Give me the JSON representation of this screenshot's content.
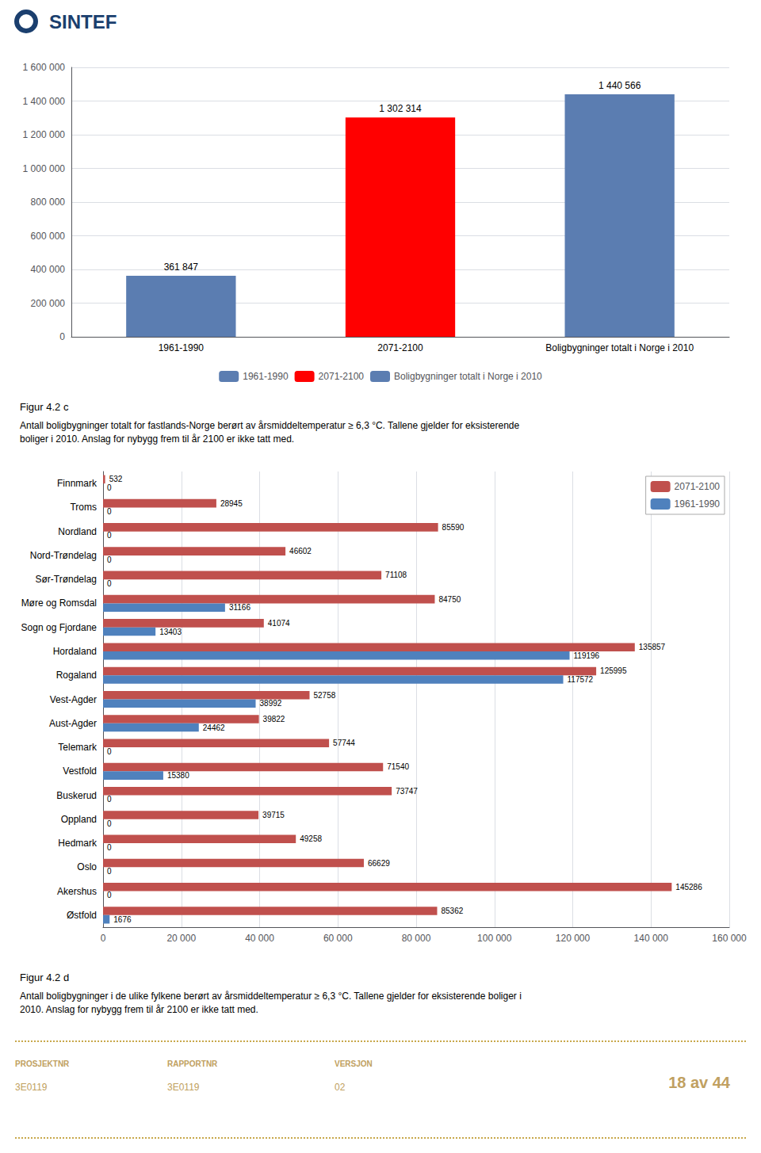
{
  "chart_data": [
    {
      "type": "bar",
      "title": "Figur 4.2 c",
      "subtitle": "Antall boligbygninger totalt for fastlands-Norge berørt av årsmiddeltemperatur ≥ 6,3 °C. Tallene gjelder for eksisterende\nboliger i 2010. Anslag for nybygg frem til år 2100 er ikke tatt med.",
      "categories": [
        "1961-1990",
        "2071-2100",
        "Boligbygninger totalt i Norge i 2010"
      ],
      "values": [
        361847,
        1302314,
        1440566
      ],
      "value_labels": [
        "361 847",
        "1 302 314",
        "1 440 566"
      ],
      "colors": [
        "#5B7DB1",
        "#FF0000",
        "#5B7DB1"
      ],
      "data_labels": true,
      "ylim": [
        0,
        1600000
      ],
      "yticks": [
        0,
        {
          "value": 200000,
          "label": "200 000"
        },
        {
          "value": 400000,
          "label": "400 000"
        },
        {
          "value": 600000,
          "label": "600 000"
        },
        {
          "value": 800000,
          "label": "800 000"
        },
        {
          "value": 1000000,
          "label": "1 000 000"
        },
        {
          "value": 1200000,
          "label": "1 200 000"
        },
        {
          "value": 1400000,
          "label": "1 400 000"
        },
        {
          "value": 1600000,
          "label": "1 600 000"
        }
      ],
      "grid": true,
      "legend": "bottom",
      "annotations": [
        {
          "text": "SINTEF",
          "color": "#1B3F6E"
        }
      ]
    },
    {
      "type": "bar",
      "orientation": "horizontal",
      "title": "Figur 4.2 d",
      "subtitle": "Antall boligbygninger i de ulike fylkene berørt av årsmiddeltemperatur ≥ 6,3 °C. Tallene gjelder for eksisterende boliger i\n2010. Anslag for nybygg frem til år 2100 er ikke tatt med.",
      "categories": [
        "Finnmark",
        "Troms",
        "Nordland",
        "Nord-Trøndelag",
        "Sør-Trøndelag",
        "Møre og Romsdal",
        "Sogn og Fjordane",
        "Hordaland",
        "Rogaland",
        "Vest-Agder",
        "Aust-Agder",
        "Telemark",
        "Vestfold",
        "Buskerud",
        "Oppland",
        "Hedmark",
        "Oslo",
        "Akershus",
        "Østfold"
      ],
      "series": [
        {
          "name": "2071-2100",
          "color": "#C0504D",
          "values": [
            532,
            28945,
            85590,
            46602,
            71108,
            84750,
            41074,
            135857,
            125995,
            52758,
            39822,
            57744,
            71540,
            73747,
            39715,
            49258,
            66629,
            145286,
            85362
          ]
        },
        {
          "name": "1961-1990",
          "color": "#4F81BD",
          "values": [
            0,
            0,
            0,
            0,
            0,
            31166,
            13403,
            119196,
            117572,
            38992,
            24462,
            0,
            15380,
            0,
            0,
            0,
            0,
            0,
            1676
          ]
        }
      ],
      "data_labels": true,
      "xlim": [
        0,
        160000
      ],
      "xticks": [
        0,
        {
          "value": 20000,
          "label": "20 000"
        },
        {
          "value": 40000,
          "label": "40 000"
        },
        {
          "value": 60000,
          "label": "60 000"
        },
        {
          "value": 80000,
          "label": "80 000"
        },
        {
          "value": 100000,
          "label": "100 000"
        },
        {
          "value": 120000,
          "label": "120 000"
        },
        {
          "value": 140000,
          "label": "140 000"
        },
        {
          "value": 160000,
          "label": "160 000"
        }
      ],
      "grid": true,
      "legend": "upper right",
      "annotations": [
        {
          "text": "PROSJEKTNR",
          "color": "#C0A060"
        },
        {
          "text": "3E0119",
          "color": "#C0A060"
        },
        {
          "text": "RAPPORTNR",
          "color": "#C0A060"
        },
        {
          "text": "3E0119",
          "color": "#C0A060"
        },
        {
          "text": "VERSJON",
          "color": "#C0A060"
        },
        {
          "text": "02",
          "color": "#C0A060"
        },
        {
          "text": "18 av 44",
          "color": "#C0A060"
        }
      ]
    }
  ]
}
